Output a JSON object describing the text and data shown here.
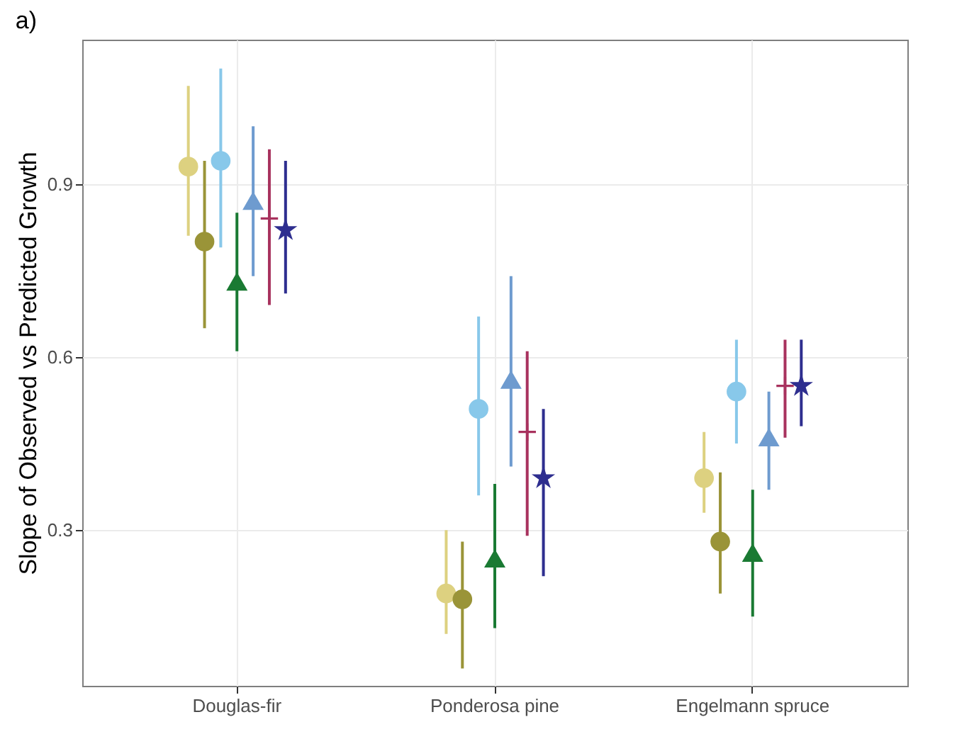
{
  "chart_data": {
    "type": "scatter",
    "title": "a)",
    "ylabel": "Slope of Observed vs Predicted Growth",
    "categories": [
      "Douglas-fir",
      "Ponderosa pine",
      "Engelmann spruce"
    ],
    "ylim": [
      0.03,
      1.15
    ],
    "yticks": [
      0.3,
      0.6,
      0.9
    ],
    "grid": true,
    "series": [
      {
        "color": "#ddd180",
        "marker": "circle",
        "values": [
          0.93,
          0.19,
          0.39
        ],
        "errors": [
          [
            0.81,
            1.07
          ],
          [
            0.12,
            0.3
          ],
          [
            0.33,
            0.47
          ]
        ]
      },
      {
        "color": "#9a9438",
        "marker": "circle",
        "values": [
          0.8,
          0.18,
          0.28
        ],
        "errors": [
          [
            0.65,
            0.94
          ],
          [
            0.06,
            0.28
          ],
          [
            0.19,
            0.4
          ]
        ]
      },
      {
        "color": "#88c8ea",
        "marker": "circle",
        "values": [
          0.94,
          0.51,
          0.54
        ],
        "errors": [
          [
            0.79,
            1.1
          ],
          [
            0.36,
            0.67
          ],
          [
            0.45,
            0.63
          ]
        ]
      },
      {
        "color": "#1a7a33",
        "marker": "triangle",
        "values": [
          0.73,
          0.25,
          0.26
        ],
        "errors": [
          [
            0.61,
            0.85
          ],
          [
            0.13,
            0.38
          ],
          [
            0.15,
            0.37
          ]
        ]
      },
      {
        "color": "#6e9bcf",
        "marker": "triangle",
        "values": [
          0.87,
          0.56,
          0.46
        ],
        "errors": [
          [
            0.74,
            1.0
          ],
          [
            0.41,
            0.74
          ],
          [
            0.37,
            0.54
          ]
        ]
      },
      {
        "color": "#a8325e",
        "marker": "cross",
        "values": [
          0.84,
          0.47,
          0.55
        ],
        "errors": [
          [
            0.69,
            0.96
          ],
          [
            0.29,
            0.61
          ],
          [
            0.46,
            0.63
          ]
        ]
      },
      {
        "color": "#2e2e8f",
        "marker": "star",
        "values": [
          0.82,
          0.39,
          0.55
        ],
        "errors": [
          [
            0.71,
            0.94
          ],
          [
            0.22,
            0.51
          ],
          [
            0.48,
            0.63
          ]
        ]
      }
    ]
  }
}
